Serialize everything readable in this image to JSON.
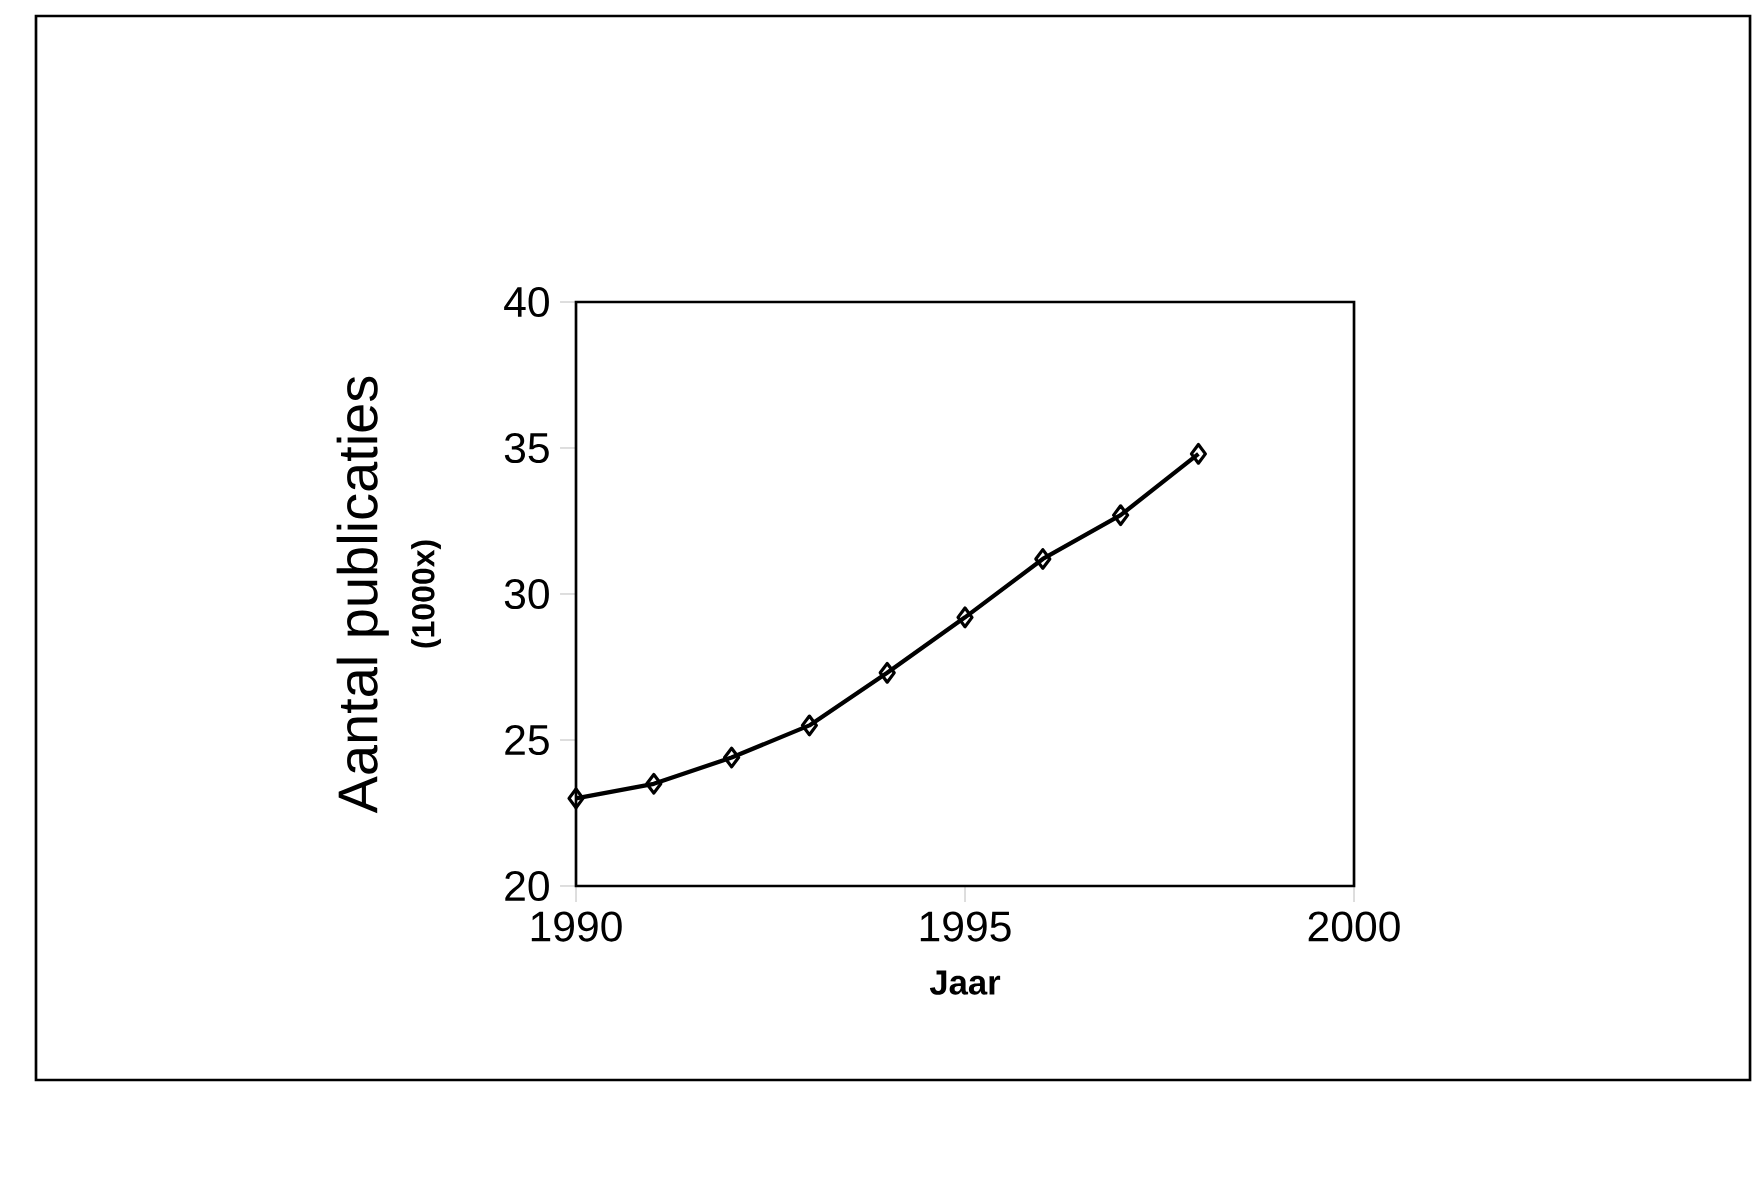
{
  "chart_data": {
    "type": "line",
    "xlabel": "Jaar",
    "ylabel": "Aantal publicaties",
    "annotations": [
      "(1000x)"
    ],
    "x": [
      1990,
      1991,
      1992,
      1993,
      1994,
      1995,
      1996,
      1997,
      1998
    ],
    "values": [
      23.0,
      23.5,
      24.4,
      25.5,
      27.3,
      29.2,
      31.2,
      32.7,
      34.8
    ],
    "color": "#000000",
    "marker": "diamond",
    "line_style": "solid",
    "xlim": [
      1990,
      2000
    ],
    "xticks": [
      1990,
      1995,
      2000
    ],
    "ylim": [
      20,
      40
    ],
    "yticks": [
      20,
      25,
      30,
      35,
      40
    ]
  }
}
